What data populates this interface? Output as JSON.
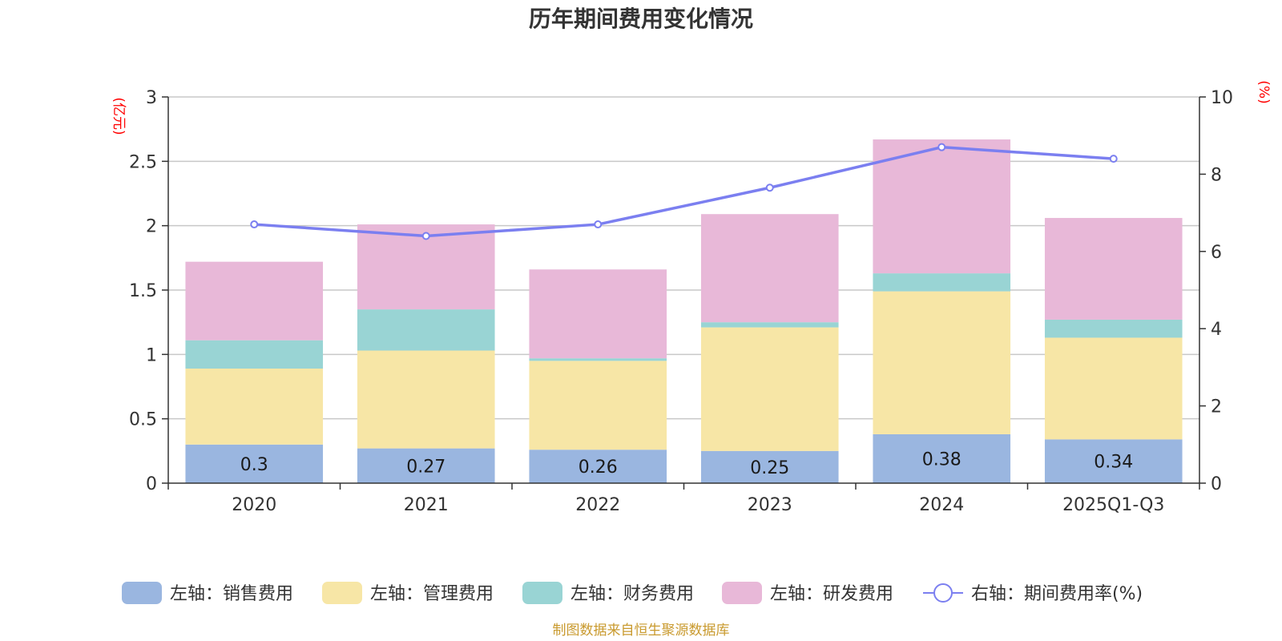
{
  "chart_data": {
    "type": "bar",
    "stacked": true,
    "title": "历年期间费用变化情况",
    "categories": [
      "2020",
      "2021",
      "2022",
      "2023",
      "2024",
      "2025Q1-Q3"
    ],
    "left_axis": {
      "unit": "(亿元)",
      "ylim": [
        0,
        3
      ],
      "ticks": [
        "0",
        "0.5",
        "1",
        "1.5",
        "2",
        "2.5",
        "3"
      ]
    },
    "right_axis": {
      "unit": "(%)",
      "ylim": [
        0,
        10
      ],
      "ticks": [
        "0",
        "2",
        "4",
        "6",
        "8",
        "10"
      ]
    },
    "series": [
      {
        "name": "左轴：销售费用",
        "color": "#9ab6e0",
        "values": [
          0.3,
          0.27,
          0.26,
          0.25,
          0.38,
          0.34
        ],
        "labels": [
          "0.3",
          "0.27",
          "0.26",
          "0.25",
          "0.38",
          "0.34"
        ]
      },
      {
        "name": "左轴：管理费用",
        "color": "#f7e6a6",
        "values": [
          0.59,
          0.76,
          0.69,
          0.96,
          1.11,
          0.79
        ]
      },
      {
        "name": "左轴：财务费用",
        "color": "#99d4d4",
        "values": [
          0.22,
          0.32,
          0.02,
          0.04,
          0.14,
          0.14
        ]
      },
      {
        "name": "左轴：研发费用",
        "color": "#e8b8d8",
        "values": [
          0.61,
          0.66,
          0.69,
          0.84,
          1.04,
          0.79
        ]
      }
    ],
    "line_series": {
      "name": "右轴：期间费用率(%)",
      "color": "#7b7ff0",
      "axis": "right",
      "values": [
        6.7,
        6.4,
        6.7,
        7.65,
        8.7,
        8.4
      ]
    },
    "grid": true,
    "legend_position": "bottom"
  },
  "source": "制图数据来自恒生聚源数据库"
}
